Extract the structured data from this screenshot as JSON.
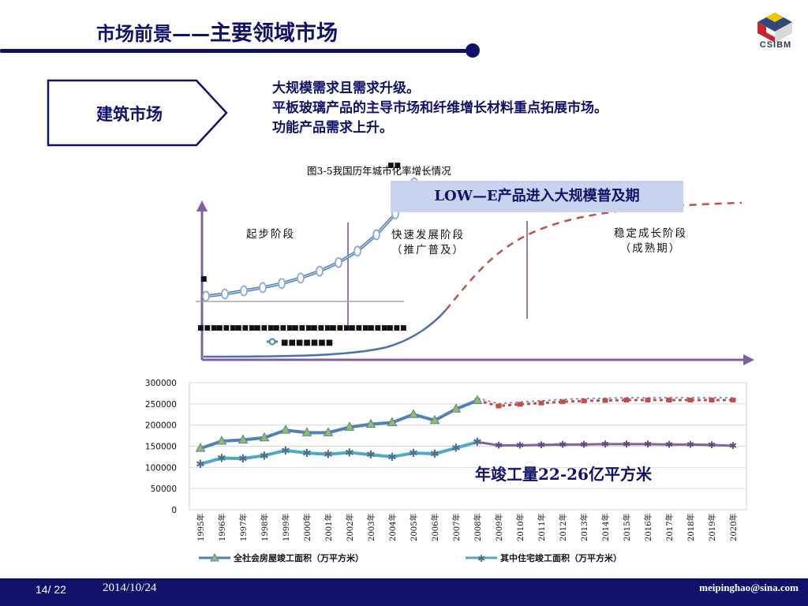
{
  "slide": {
    "title_prefix": "市场前景——",
    "title_main": "主要领域市场",
    "logo_text": "CSIBM",
    "tag_label": "建筑市场",
    "bullets": [
      "大规模需求且需求升级。",
      "平板玻璃产品的主导市场和纤维增长材料重点拓展市场。",
      "功能产品需求上升。"
    ],
    "figure_caption": "图3-5我国历年城市化率增长情况",
    "banner": "LOW—E产品进入大规模普及期",
    "stages": {
      "start": "起步阶段",
      "fast_line1": "快速发展阶段",
      "fast_line2": "（推广普及）",
      "stable_line1": "稳定成长阶段",
      "stable_line2": "（成熟期）"
    },
    "annotation": "年竣工量22-26亿平方米",
    "footer": {
      "page": "14/ 22",
      "date": "2014/10/24",
      "email": "meipinghao@sina.com"
    },
    "colors": {
      "navy": "#10116a",
      "series_total": "#4f81bd",
      "series_residential": "#4bacc6",
      "forecast_total": "#c0504d",
      "forecast_residential": "#8064a2"
    }
  },
  "chart_data": [
    {
      "type": "line",
      "title": "",
      "y_ticks": [
        "0",
        "50000",
        "100000",
        "150000",
        "200000",
        "250000",
        "300000"
      ],
      "ylim": [
        0,
        300000
      ],
      "categories": [
        "1995年",
        "1996年",
        "1997年",
        "1998年",
        "1999年",
        "2000年",
        "2001年",
        "2002年",
        "2003年",
        "2004年",
        "2005年",
        "2006年",
        "2007年",
        "2008年",
        "2009年",
        "2010年",
        "2011年",
        "2012年",
        "2013年",
        "2014年",
        "2015年",
        "2016年",
        "2017年",
        "2018年",
        "2019年",
        "2020年"
      ],
      "series": [
        {
          "name": "全社会房屋竣工面积（万平方米）",
          "values": [
            145000,
            162000,
            165000,
            170000,
            188000,
            182000,
            182000,
            195000,
            202000,
            206000,
            225000,
            211000,
            238000,
            258000,
            null,
            null,
            null,
            null,
            null,
            null,
            null,
            null,
            null,
            null,
            null,
            null
          ]
        },
        {
          "name": "其中住宅竣工面积（万平方米）",
          "values": [
            108000,
            122000,
            121000,
            128000,
            140000,
            134000,
            131000,
            135000,
            130000,
            125000,
            134000,
            132000,
            146000,
            160000,
            null,
            null,
            null,
            null,
            null,
            null,
            null,
            null,
            null,
            null,
            null,
            null
          ]
        }
      ],
      "forecast": [
        {
          "values": [
            null,
            null,
            null,
            null,
            null,
            null,
            null,
            null,
            null,
            null,
            null,
            null,
            null,
            258000,
            245000,
            249000,
            252000,
            255000,
            257000,
            258000,
            259000,
            259000,
            259000,
            259000,
            259000,
            259000
          ]
        },
        {
          "values": [
            null,
            null,
            null,
            null,
            null,
            null,
            null,
            null,
            null,
            null,
            null,
            null,
            null,
            160000,
            152000,
            152000,
            153000,
            154000,
            154000,
            155000,
            155000,
            155000,
            154000,
            154000,
            153000,
            151000
          ]
        }
      ]
    },
    {
      "type": "line",
      "title": "",
      "inset_values": [
        18.1,
        18.6,
        19.3,
        20.0,
        20.9,
        22.1,
        23.6,
        25.5,
        28.0,
        31.6,
        36.2,
        43.0
      ]
    }
  ]
}
